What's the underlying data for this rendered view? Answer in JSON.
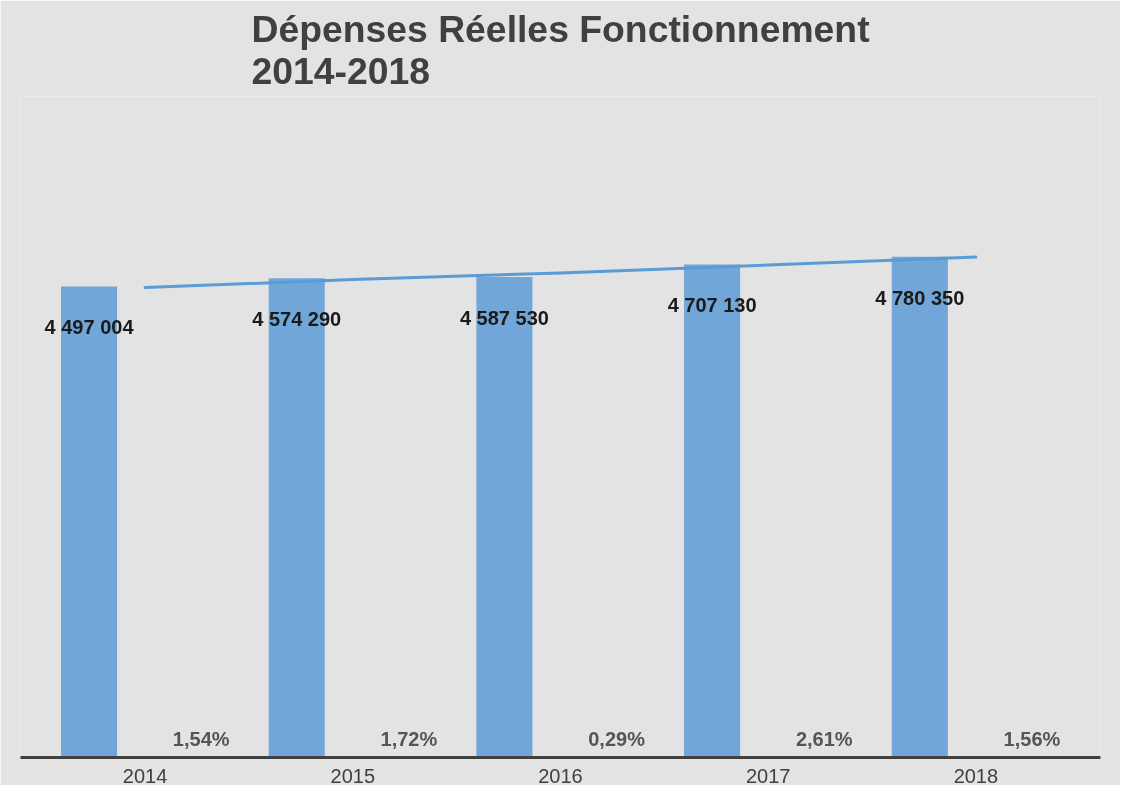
{
  "chart_data": {
    "type": "bar",
    "title": "Dépenses Réelles Fonctionnement\n2014-2018",
    "categories": [
      "2014",
      "2015",
      "2016",
      "2017",
      "2018"
    ],
    "series": [
      {
        "color": "#70a6d8",
        "values": [
          4497004,
          4574290,
          4587530,
          4707130,
          4780350
        ],
        "value_labels": [
          "4 497 004",
          "4 574 290",
          "4 587 530",
          "4 707 130",
          "4 780 350"
        ]
      },
      {
        "type": "line",
        "color": "#5b9bd5",
        "values": [
          4486000,
          4562000,
          4626000,
          4701000,
          4777000
        ]
      }
    ],
    "annotations": [
      "1,54%",
      "1,72%",
      "0,29%",
      "2,61%",
      "1,56%"
    ]
  }
}
